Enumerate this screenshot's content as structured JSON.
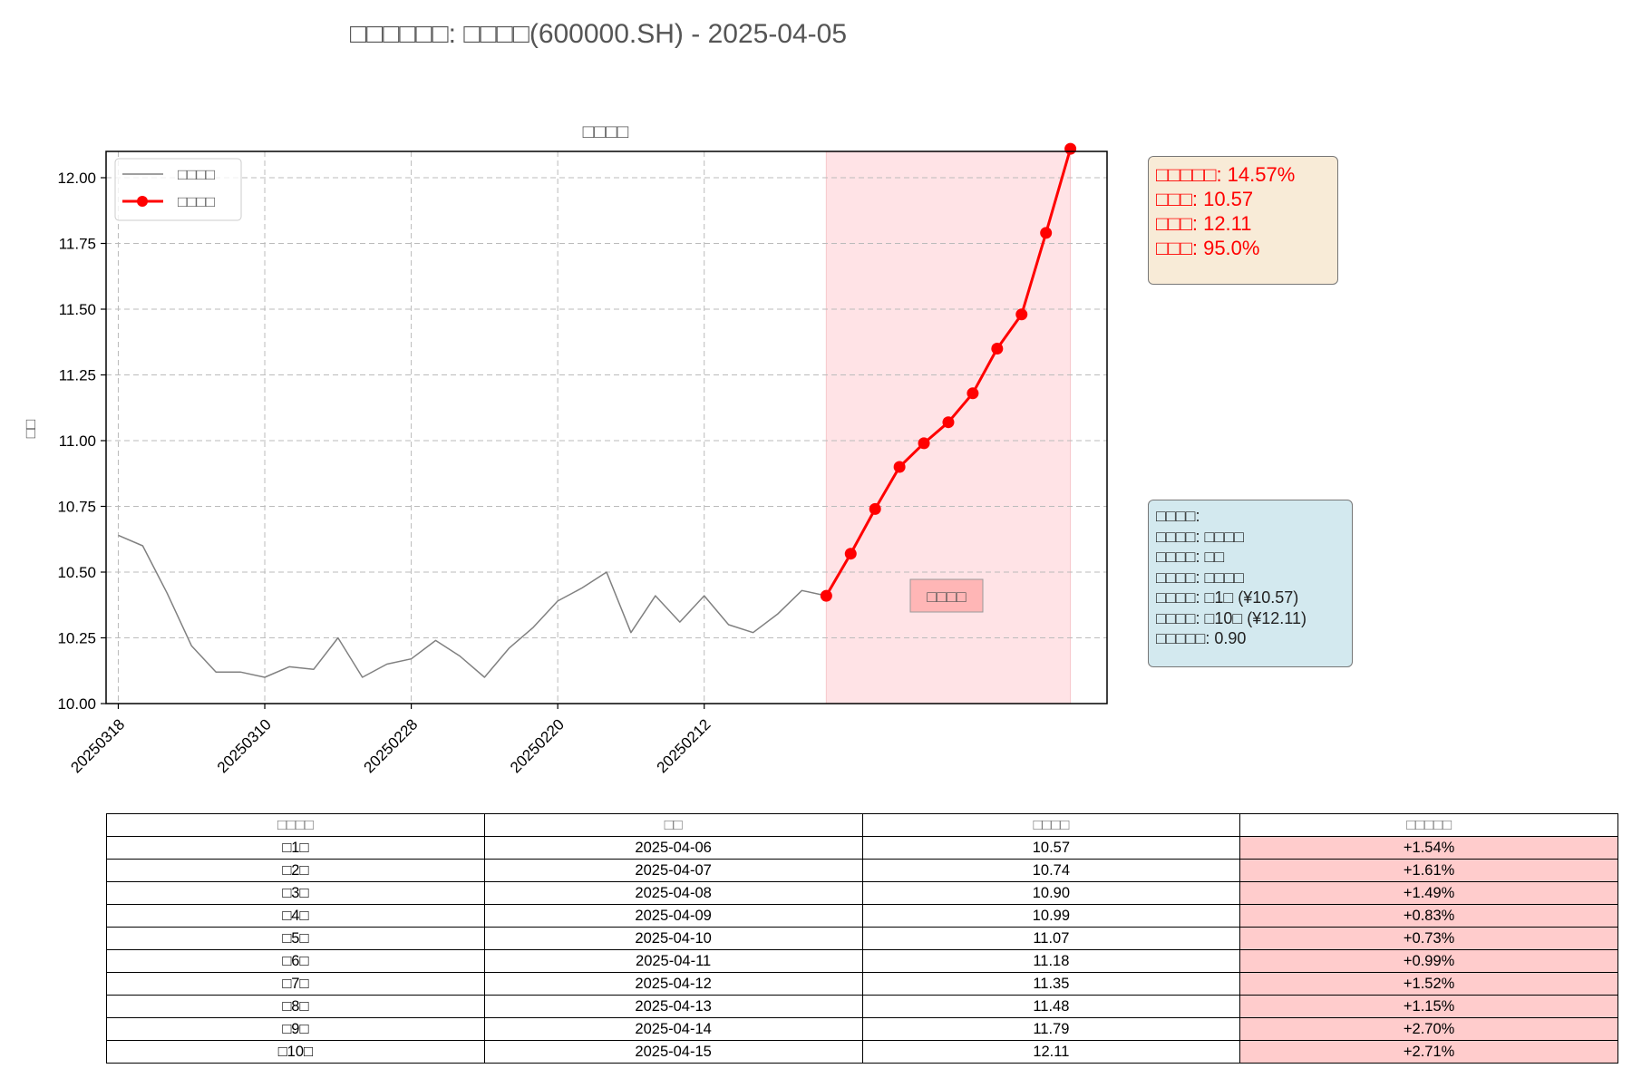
{
  "figure_title": "□□□□□□: □□□□(600000.SH) - 2025-04-05",
  "chart_data": {
    "type": "line",
    "title": "□□□□",
    "xlabel": "",
    "ylabel": "□□",
    "ylim": [
      10.0,
      12.1
    ],
    "yticks": [
      "10.00",
      "10.25",
      "10.50",
      "10.75",
      "11.00",
      "11.25",
      "11.50",
      "11.75",
      "12.00"
    ],
    "xlim": [
      -0.5,
      40.5
    ],
    "xticks": [
      {
        "index": 0,
        "label": "20250318"
      },
      {
        "index": 6,
        "label": "20250310"
      },
      {
        "index": 12,
        "label": "20250228"
      },
      {
        "index": 18,
        "label": "20250220"
      },
      {
        "index": 24,
        "label": "20250212"
      }
    ],
    "grid": true,
    "legend_position": "top-left",
    "series": [
      {
        "name": "□□□□",
        "color": "#808080",
        "x": [
          0,
          1,
          2,
          3,
          4,
          5,
          6,
          7,
          8,
          9,
          10,
          11,
          12,
          13,
          14,
          15,
          16,
          17,
          18,
          19,
          20,
          21,
          22,
          23,
          24,
          25,
          26,
          27,
          28,
          29
        ],
        "values": [
          10.64,
          10.6,
          10.42,
          10.22,
          10.12,
          10.12,
          10.1,
          10.14,
          10.13,
          10.25,
          10.1,
          10.15,
          10.17,
          10.24,
          10.18,
          10.1,
          10.21,
          10.29,
          10.39,
          10.44,
          10.5,
          10.27,
          10.41,
          10.31,
          10.41,
          10.3,
          10.27,
          10.34,
          10.43,
          10.41
        ]
      },
      {
        "name": "□□□□",
        "color": "#ff0000",
        "x": [
          29,
          30,
          31,
          32,
          33,
          34,
          35,
          36,
          37,
          38,
          39
        ],
        "values": [
          10.41,
          10.57,
          10.74,
          10.9,
          10.99,
          11.07,
          11.18,
          11.35,
          11.48,
          11.79,
          12.11
        ]
      }
    ],
    "forecast_span": [
      29,
      39
    ],
    "forecast_label": "□□□□"
  },
  "summary": {
    "lines": [
      "□□□□□: 14.57%",
      "□□□: 10.57",
      "□□□: 12.11",
      "□□□: 95.0%"
    ]
  },
  "signal": {
    "lines": [
      "□□□□:",
      "□□□□: □□□□",
      "□□□□: □□",
      "□□□□: □□□□",
      "□□□□: □1□ (¥10.57)",
      "□□□□: □10□ (¥12.11)",
      "□□□□□: 0.90"
    ]
  },
  "table": {
    "headers": [
      "□□□□",
      "□□",
      "□□□□",
      "□□□□□"
    ],
    "rows": [
      [
        "□1□",
        "2025-04-06",
        "10.57",
        "+1.54%"
      ],
      [
        "□2□",
        "2025-04-07",
        "10.74",
        "+1.61%"
      ],
      [
        "□3□",
        "2025-04-08",
        "10.90",
        "+1.49%"
      ],
      [
        "□4□",
        "2025-04-09",
        "10.99",
        "+0.83%"
      ],
      [
        "□5□",
        "2025-04-10",
        "11.07",
        "+0.73%"
      ],
      [
        "□6□",
        "2025-04-11",
        "11.18",
        "+0.99%"
      ],
      [
        "□7□",
        "2025-04-12",
        "11.35",
        "+1.52%"
      ],
      [
        "□8□",
        "2025-04-13",
        "11.48",
        "+1.15%"
      ],
      [
        "□9□",
        "2025-04-14",
        "11.79",
        "+2.70%"
      ],
      [
        "□10□",
        "2025-04-15",
        "12.11",
        "+2.71%"
      ]
    ]
  }
}
